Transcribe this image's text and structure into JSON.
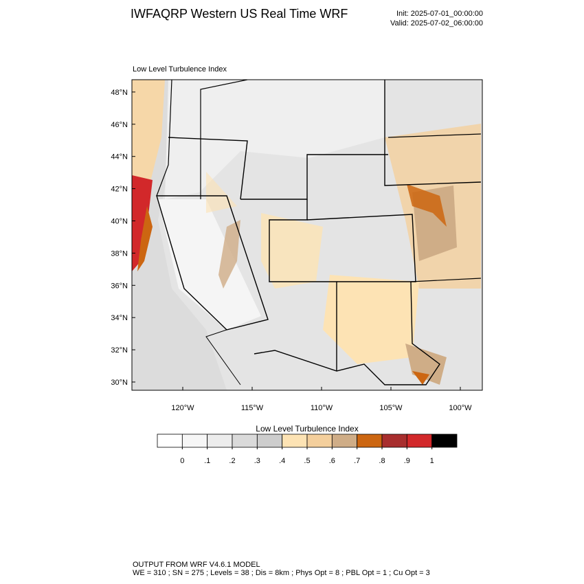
{
  "header": {
    "title": "IWFAQRP Western US Real Time WRF",
    "init": "Init: 2025-07-01_00:00:00",
    "valid": "Valid: 2025-07-02_06:00:00"
  },
  "map": {
    "subtitle": "Low Level Turbulence Index",
    "lat_labels": [
      "30°N",
      "32°N",
      "34°N",
      "36°N",
      "38°N",
      "40°N",
      "42°N",
      "44°N",
      "46°N",
      "48°N"
    ],
    "lon_labels": [
      "120°W",
      "115°W",
      "110°W",
      "105°W",
      "100°W"
    ]
  },
  "colorbar": {
    "title": "Low Level Turbulence Index",
    "colors": [
      "#ffffff",
      "#f6f6f6",
      "#ececec",
      "#dadada",
      "#cdcdcd",
      "#fde3b4",
      "#f4cf9c",
      "#cfad87",
      "#cc6611",
      "#a82e2e",
      "#d2282a",
      "#000000"
    ],
    "ticks": [
      {
        "value": 0,
        "label": "0"
      },
      {
        "value": 0.1,
        "label": ".1"
      },
      {
        "value": 0.2,
        "label": ".2"
      },
      {
        "value": 0.3,
        "label": ".3"
      },
      {
        "value": 0.4,
        "label": ".4"
      },
      {
        "value": 0.5,
        "label": ".5"
      },
      {
        "value": 0.6,
        "label": ".6"
      },
      {
        "value": 0.7,
        "label": ".7"
      },
      {
        "value": 0.8,
        "label": ".8"
      },
      {
        "value": 0.9,
        "label": ".9"
      },
      {
        "value": 1,
        "label": "1"
      }
    ]
  },
  "footer": {
    "line1": "OUTPUT FROM WRF V4.6.1 MODEL",
    "line2": "WE = 310 ; SN = 275 ; Levels = 38 ; Dis = 8km ; Phys Opt = 8 ; PBL Opt = 1 ; Cu Opt = 3"
  }
}
